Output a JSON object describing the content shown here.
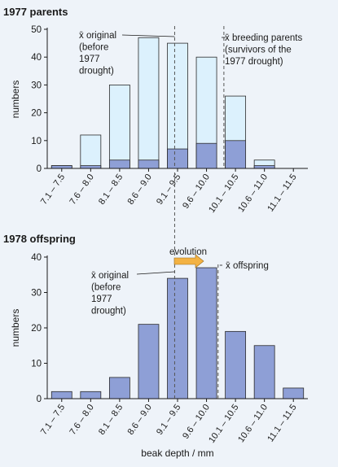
{
  "colors": {
    "background": "#eef3f9",
    "bar_fill": "#8e9fd6",
    "bar_stroke": "#2b2b2b",
    "light_bar_fill": "#dcf1fd",
    "arrow_fill": "#f3b243",
    "axis": "#1a1a1a",
    "dashed": "#555555"
  },
  "chart_data": [
    {
      "type": "bar",
      "title": "1977 parents",
      "ylabel": "numbers",
      "categories": [
        "7.1 – 7.5",
        "7.6 – 8.0",
        "8.1 – 8.5",
        "8.6 – 9.0",
        "9.1 – 9.5",
        "9.6 – 10.0",
        "10.1 – 10.5",
        "10.6 – 11.0",
        "11.1 – 11.5"
      ],
      "series": [
        {
          "values": [
            1,
            12,
            30,
            47,
            45,
            40,
            26,
            3,
            0
          ],
          "color": "#dcf1fd"
        },
        {
          "values": [
            1,
            1,
            3,
            3,
            7,
            9,
            10,
            1,
            0
          ],
          "color": "#8e9fd6"
        }
      ],
      "ylim": [
        0,
        50
      ],
      "yticks": [
        0,
        10,
        20,
        30,
        40,
        50
      ],
      "mean_lines": [
        {
          "x": 9.25,
          "label": [
            "x̄ original",
            "(before",
            "1977",
            "drought)"
          ]
        },
        {
          "x": 10.1,
          "label": [
            "x̄ breeding parents",
            "(survivors of the",
            "1977 drought)"
          ]
        }
      ]
    },
    {
      "type": "bar",
      "title": "1978 offspring",
      "ylabel": "numbers",
      "xlabel": "beak depth / mm",
      "categories": [
        "7.1 – 7.5",
        "7.6 – 8.0",
        "8.1 – 8.5",
        "8.6 – 9.0",
        "9.1 – 9.5",
        "9.6 – 10.0",
        "10.1 – 10.5",
        "10.6 – 11.0",
        "11.1 – 11.5"
      ],
      "series": [
        {
          "values": [
            2,
            2,
            6,
            21,
            34,
            37,
            19,
            15,
            3
          ],
          "color": "#8e9fd6"
        }
      ],
      "ylim": [
        0,
        40
      ],
      "yticks": [
        0,
        10,
        20,
        30,
        40
      ],
      "mean_lines": [
        {
          "x": 9.25,
          "label": [
            "x̄ original",
            "(before",
            "1977",
            "drought)"
          ]
        },
        {
          "x": 10.0,
          "label": [
            "x̄ offspring"
          ]
        }
      ],
      "arrow_label": "evolution"
    }
  ]
}
